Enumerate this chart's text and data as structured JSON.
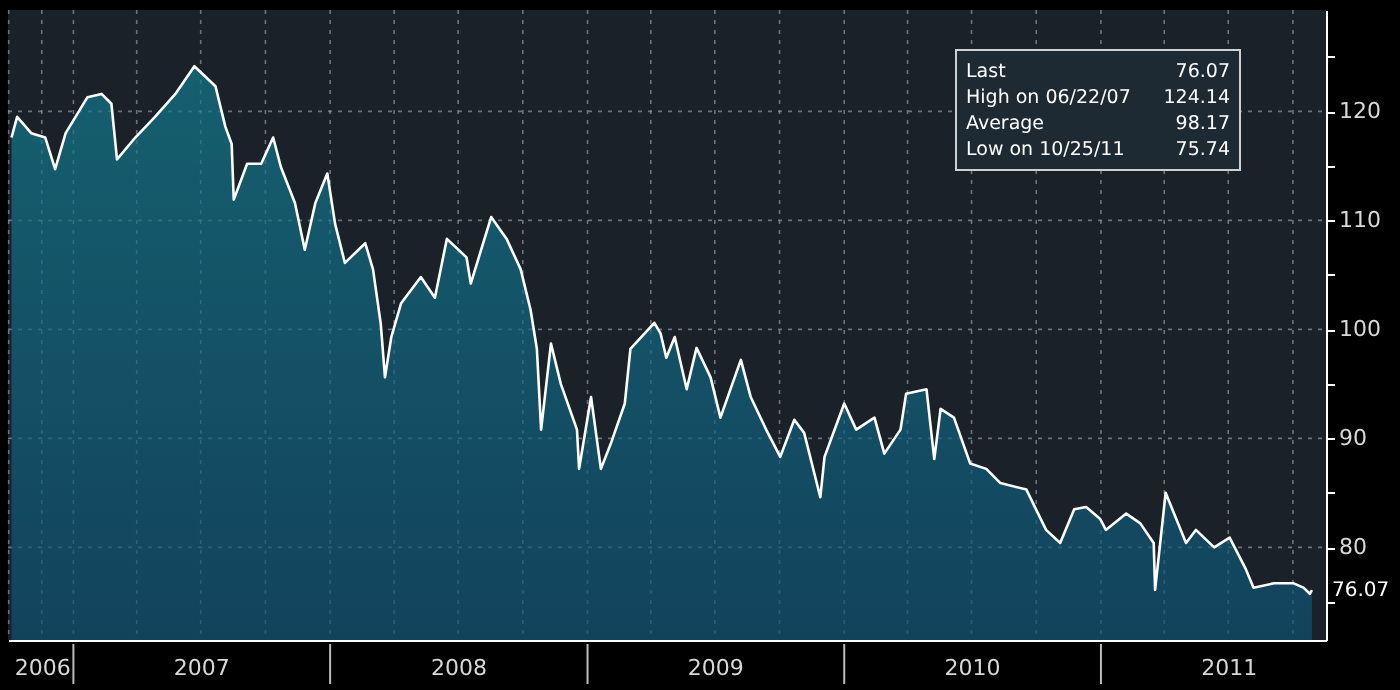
{
  "chart_data": {
    "type": "area",
    "grid": true,
    "xlim": [
      "2006-09-30",
      "2011-11-17"
    ],
    "ylim": [
      71.5,
      129.3
    ],
    "yticks": [
      {
        "value": 75,
        "label": null
      },
      80,
      {
        "value": 85,
        "label": null
      },
      90,
      {
        "value": 95,
        "label": null
      },
      100,
      {
        "value": 105,
        "label": null
      },
      110,
      {
        "value": 115,
        "label": null
      },
      120,
      {
        "value": 125,
        "label": null
      }
    ],
    "xticks": [
      {
        "value": "2006-10-01",
        "label": null
      },
      {
        "value": "2006-11-17",
        "label": "2006"
      },
      {
        "value": "2007-01-01",
        "label": null
      },
      {
        "value": "2007-04-01",
        "label": null
      },
      {
        "value": "2007-07-01",
        "label": "2007"
      },
      {
        "value": "2007-10-01",
        "label": null
      },
      {
        "value": "2008-01-01",
        "label": null
      },
      {
        "value": "2008-04-01",
        "label": null
      },
      {
        "value": "2008-07-01",
        "label": "2008"
      },
      {
        "value": "2008-10-01",
        "label": null
      },
      {
        "value": "2009-01-01",
        "label": null
      },
      {
        "value": "2009-04-01",
        "label": null
      },
      {
        "value": "2009-07-01",
        "label": "2009"
      },
      {
        "value": "2009-10-01",
        "label": null
      },
      {
        "value": "2010-01-01",
        "label": null
      },
      {
        "value": "2010-04-01",
        "label": null
      },
      {
        "value": "2010-07-01",
        "label": "2010"
      },
      {
        "value": "2010-10-01",
        "label": null
      },
      {
        "value": "2011-01-01",
        "label": null
      },
      {
        "value": "2011-04-01",
        "label": null
      },
      {
        "value": "2011-07-01",
        "label": "2011"
      },
      {
        "value": "2011-10-01",
        "label": null
      }
    ],
    "annotations": [
      "Last 76.07",
      "High on 06/22/07 124.14",
      "Average 98.17",
      "Low on 10/25/11 75.74",
      {
        "text": "76.07",
        "x": "2011-10-28",
        "y": 76.07
      }
    ],
    "series": [
      {
        "color": "#ffffff",
        "x": [
          "2006-10-05",
          "2006-10-13",
          "2006-11-02",
          "2006-11-22",
          "2006-12-06",
          "2006-12-21",
          "2007-01-21",
          "2007-02-10",
          "2007-02-24",
          "2007-03-04",
          "2007-03-30",
          "2007-04-27",
          "2007-05-26",
          "2007-06-22",
          "2007-07-22",
          "2007-08-05",
          "2007-08-14",
          "2007-08-17",
          "2007-09-05",
          "2007-09-25",
          "2007-10-12",
          "2007-10-23",
          "2007-11-12",
          "2007-11-26",
          "2007-12-11",
          "2007-12-28",
          "2008-01-08",
          "2008-01-22",
          "2008-02-20",
          "2008-03-02",
          "2008-03-13",
          "2008-03-19",
          "2008-03-28",
          "2008-04-11",
          "2008-05-09",
          "2008-05-29",
          "2008-06-15",
          "2008-07-13",
          "2008-07-19",
          "2008-08-17",
          "2008-09-08",
          "2008-09-28",
          "2008-10-12",
          "2008-10-21",
          "2008-10-27",
          "2008-11-10",
          "2008-11-24",
          "2008-12-17",
          "2008-12-20",
          "2009-01-06",
          "2009-01-20",
          "2009-02-03",
          "2009-02-23",
          "2009-03-03",
          "2009-04-06",
          "2009-04-15",
          "2009-04-23",
          "2009-05-05",
          "2009-05-22",
          "2009-06-05",
          "2009-06-25",
          "2009-07-09",
          "2009-08-07",
          "2009-08-21",
          "2009-09-12",
          "2009-10-02",
          "2009-10-22",
          "2009-11-05",
          "2009-11-28",
          "2009-12-04",
          "2010-01-01",
          "2010-01-18",
          "2010-02-13",
          "2010-02-27",
          "2010-03-22",
          "2010-03-30",
          "2010-04-28",
          "2010-05-09",
          "2010-05-18",
          "2010-06-06",
          "2010-06-29",
          "2010-07-22",
          "2010-08-11",
          "2010-09-17",
          "2010-10-15",
          "2010-11-04",
          "2010-11-24",
          "2010-12-11",
          "2010-12-31",
          "2011-01-08",
          "2011-02-06",
          "2011-02-26",
          "2011-03-17",
          "2011-03-19",
          "2011-04-03",
          "2011-05-02",
          "2011-05-16",
          "2011-06-11",
          "2011-07-03",
          "2011-07-26",
          "2011-08-06",
          "2011-09-04",
          "2011-10-02",
          "2011-10-16",
          "2011-10-25",
          "2011-10-28"
        ],
        "values": [
          117.6,
          119.5,
          118,
          117.6,
          114.7,
          118,
          121.3,
          121.6,
          120.7,
          115.6,
          117.6,
          119.5,
          121.6,
          124.14,
          122.3,
          118.6,
          117,
          111.9,
          115.2,
          115.2,
          117.6,
          114.9,
          111.6,
          107.3,
          111.6,
          114.3,
          109.7,
          106.1,
          107.9,
          105.5,
          100.5,
          95.6,
          99.3,
          102.4,
          104.8,
          102.9,
          108.3,
          106.6,
          104.2,
          110.3,
          108.3,
          105.5,
          101.8,
          98.2,
          90.8,
          98.7,
          95,
          90.8,
          87.2,
          93.8,
          87.2,
          89.5,
          93.2,
          98.2,
          100.6,
          99.6,
          97.4,
          99.3,
          94.5,
          98.3,
          95.6,
          91.9,
          97.2,
          93.8,
          90.8,
          88.3,
          91.7,
          90.5,
          84.6,
          88.3,
          93.2,
          90.8,
          91.9,
          88.6,
          90.8,
          94.1,
          94.5,
          88.1,
          92.7,
          91.9,
          87.7,
          87.2,
          85.9,
          85.3,
          81.6,
          80.4,
          83.5,
          83.7,
          82.6,
          81.6,
          83.1,
          82.2,
          80.4,
          76.1,
          85,
          80.4,
          81.6,
          80,
          80.9,
          78,
          76.3,
          76.7,
          76.7,
          76.3,
          75.74,
          76.07
        ]
      }
    ]
  }
}
